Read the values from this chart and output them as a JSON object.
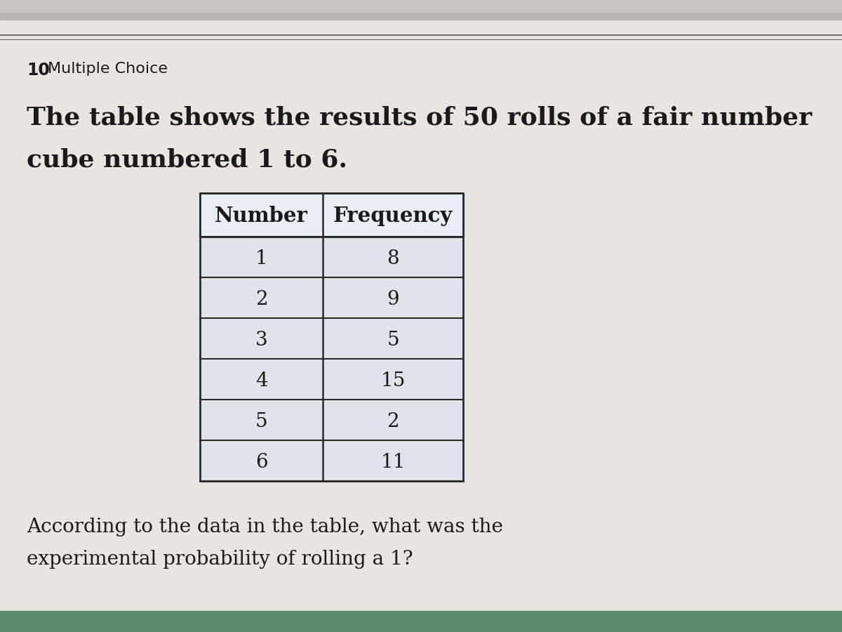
{
  "question_number": "10",
  "question_type": "Multiple Choice",
  "paragraph_line1": "The table shows the results of 50 rolls of a fair number",
  "paragraph_line2": "cube numbered 1 to 6.",
  "table_headers": [
    "Number",
    "Frequency"
  ],
  "table_data": [
    [
      "1",
      "8"
    ],
    [
      "2",
      "9"
    ],
    [
      "3",
      "5"
    ],
    [
      "4",
      "15"
    ],
    [
      "5",
      "2"
    ],
    [
      "6",
      "11"
    ]
  ],
  "footer_line1": "According to the data in the table, what was the",
  "footer_line2": "experimental probability of rolling a 1?",
  "bg_color": "#e8e5e0",
  "table_cell_bg": "#dde4ec",
  "border_color": "#2a2a2a",
  "text_color": "#1a1a1a",
  "top_stripe1": "#c8c4c0",
  "top_stripe2": "#b8b4b0",
  "separator_color": "#555555"
}
